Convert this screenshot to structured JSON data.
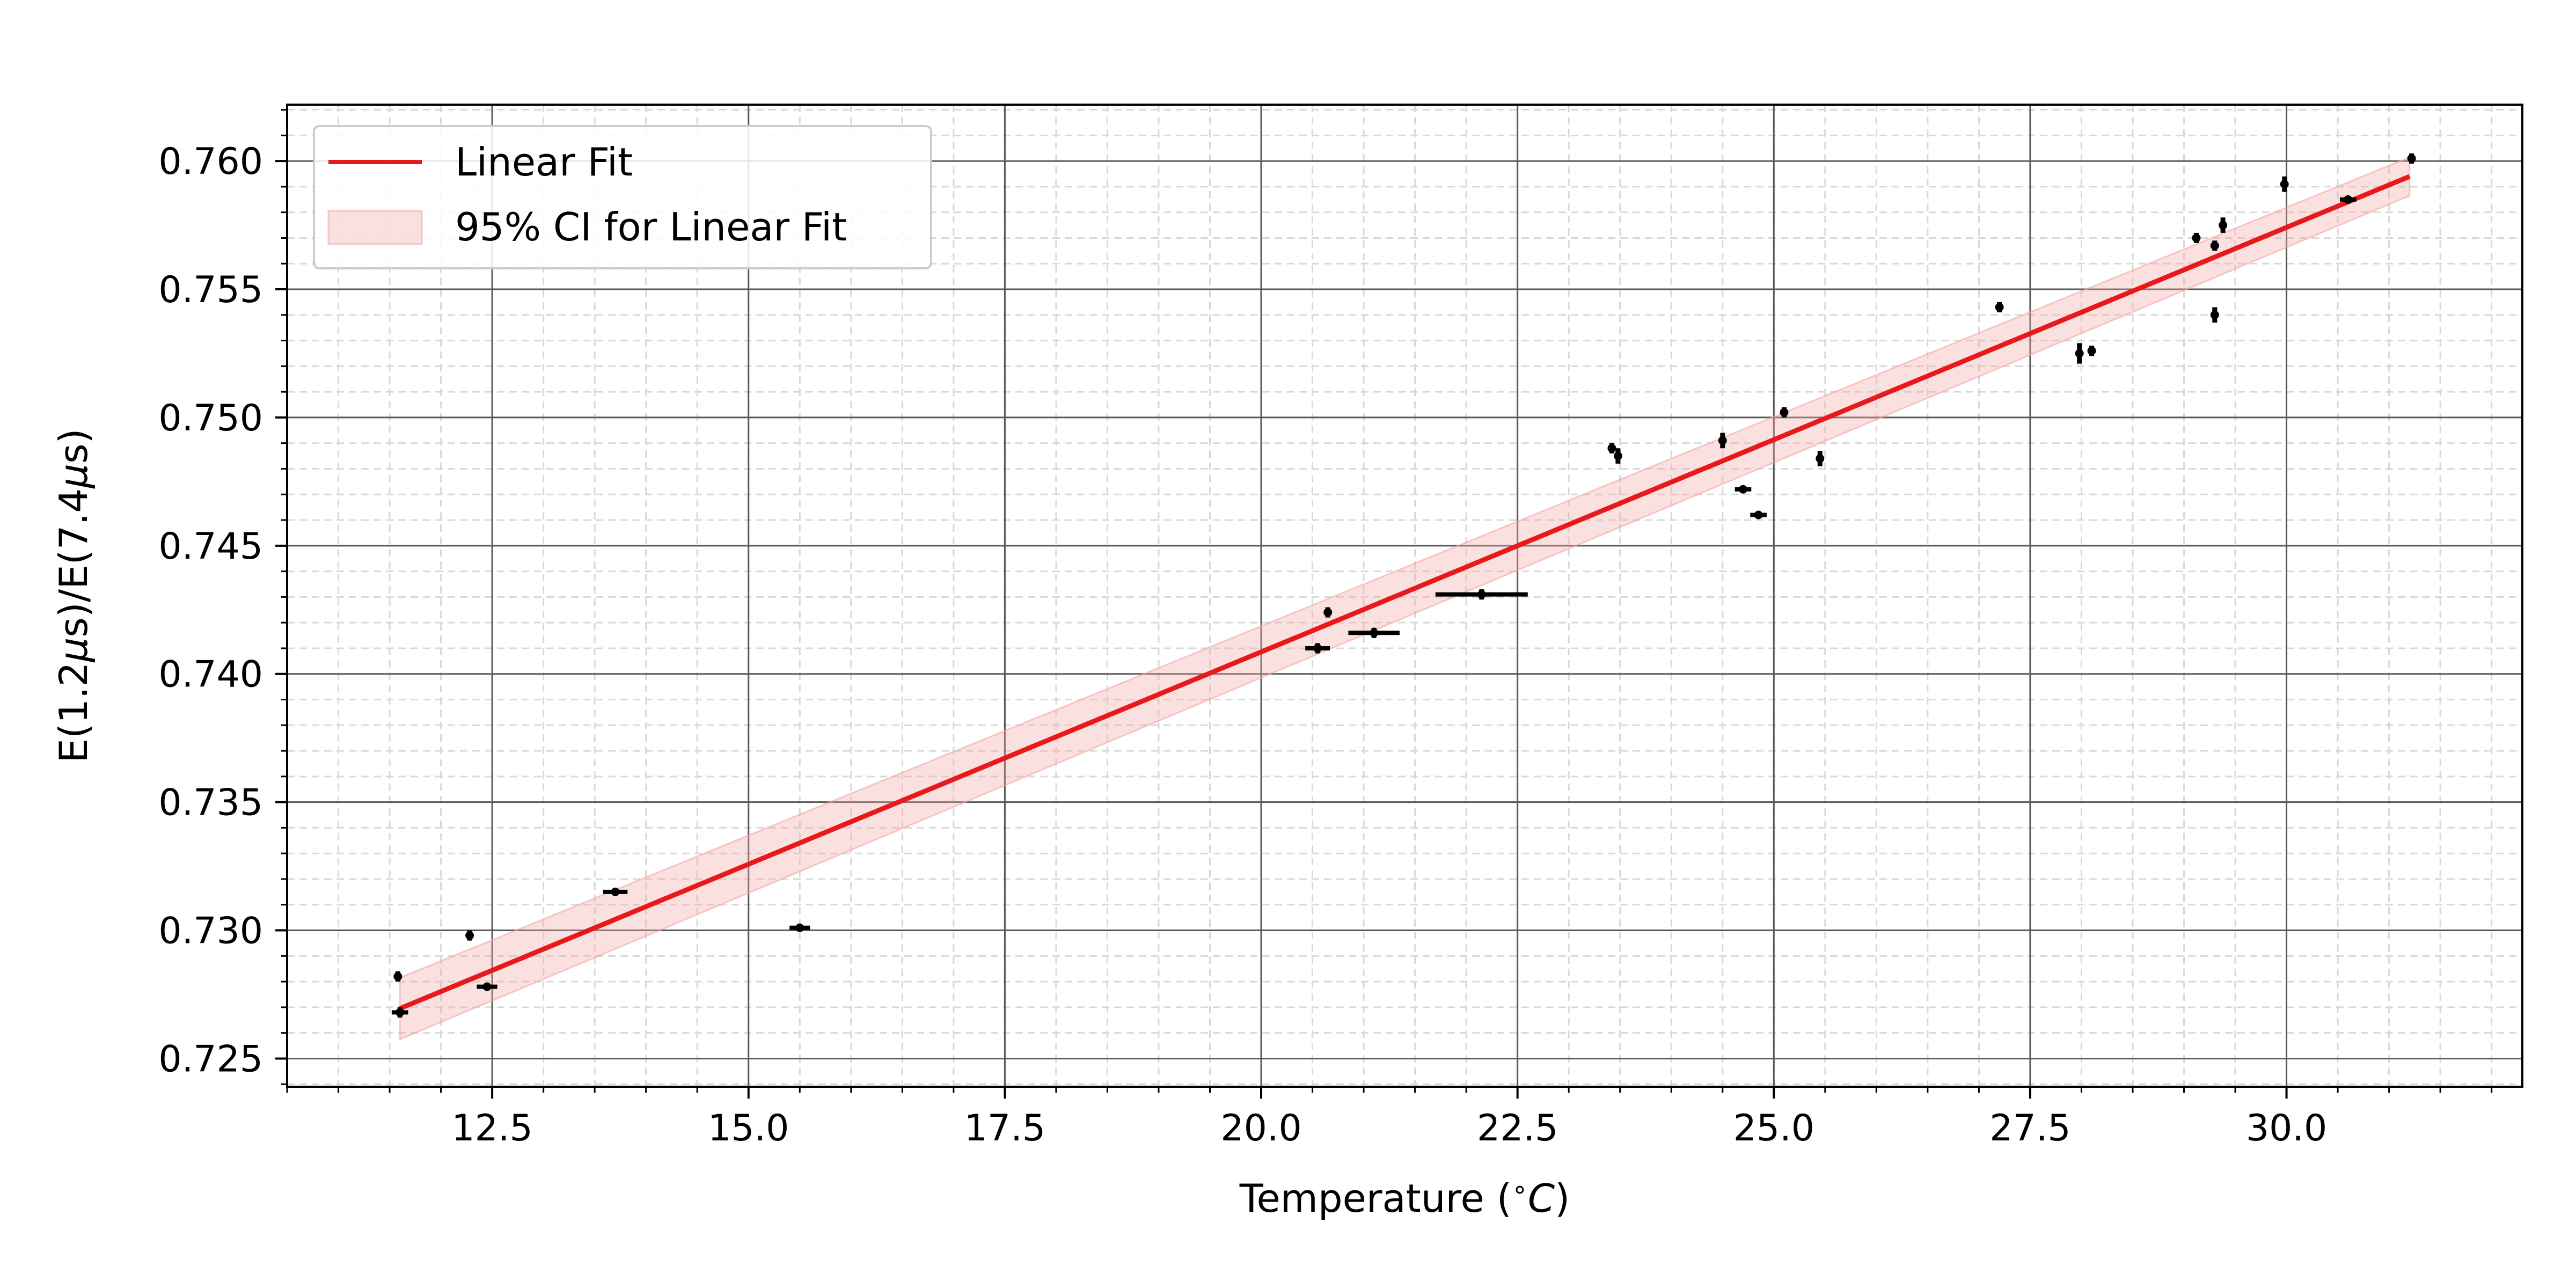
{
  "chart_data": {
    "type": "scatter",
    "title": "",
    "xlabel": "Temperature ($^\\circ C$)",
    "xlabel_parts": {
      "before": "Temperature (",
      "sup": "∘",
      "var": "C",
      "after": ")"
    },
    "ylabel": "E(1.2μs)/E(7.4μs)",
    "ylabel_parts": {
      "p1": "E(1.2",
      "mu1": "μ",
      "p2": "s)/E(7.4",
      "mu2": "μ",
      "p3": "s)"
    },
    "xlim": [
      10.5,
      32.3
    ],
    "ylim": [
      0.7239,
      0.7622
    ],
    "xticks": [
      12.5,
      15.0,
      17.5,
      20.0,
      22.5,
      25.0,
      27.5,
      30.0
    ],
    "xtick_labels": [
      "12.5",
      "15.0",
      "17.5",
      "20.0",
      "22.5",
      "25.0",
      "27.5",
      "30.0"
    ],
    "yticks": [
      0.725,
      0.73,
      0.735,
      0.74,
      0.745,
      0.75,
      0.755,
      0.76
    ],
    "ytick_labels": [
      "0.725",
      "0.730",
      "0.735",
      "0.740",
      "0.745",
      "0.750",
      "0.755",
      "0.760"
    ],
    "grid": true,
    "minor_grid": true,
    "legend_position": "upper-left",
    "fit": {
      "name": "Linear Fit",
      "color": "#e8191a",
      "x": [
        11.6,
        31.2
      ],
      "y": [
        0.72695,
        0.7594
      ],
      "ci_name": "95% CI for Linear Fit",
      "ci_color": "#f4a6a6",
      "ci_lower": [
        0.72575,
        0.75865
      ],
      "ci_upper": [
        0.72815,
        0.76015
      ]
    },
    "points": [
      {
        "x": 11.58,
        "y": 0.7282,
        "xerr": 0.0,
        "yerr": 0.0002
      },
      {
        "x": 11.6,
        "y": 0.7268,
        "xerr": 0.08,
        "yerr": 0.0002
      },
      {
        "x": 12.28,
        "y": 0.7298,
        "xerr": 0.0,
        "yerr": 0.0002
      },
      {
        "x": 12.45,
        "y": 0.7278,
        "xerr": 0.1,
        "yerr": 0.0001
      },
      {
        "x": 13.7,
        "y": 0.7315,
        "xerr": 0.12,
        "yerr": 0.0001
      },
      {
        "x": 15.5,
        "y": 0.7301,
        "xerr": 0.1,
        "yerr": 0.0001
      },
      {
        "x": 20.55,
        "y": 0.741,
        "xerr": 0.12,
        "yerr": 0.0002
      },
      {
        "x": 20.65,
        "y": 0.7424,
        "xerr": 0.0,
        "yerr": 0.0002
      },
      {
        "x": 21.1,
        "y": 0.7416,
        "xerr": 0.25,
        "yerr": 0.0002
      },
      {
        "x": 22.15,
        "y": 0.7431,
        "xerr": 0.45,
        "yerr": 0.0002
      },
      {
        "x": 23.42,
        "y": 0.7488,
        "xerr": 0.0,
        "yerr": 0.0002
      },
      {
        "x": 23.48,
        "y": 0.7485,
        "xerr": 0.0,
        "yerr": 0.0003
      },
      {
        "x": 24.5,
        "y": 0.7491,
        "xerr": 0.0,
        "yerr": 0.0003
      },
      {
        "x": 24.7,
        "y": 0.7472,
        "xerr": 0.08,
        "yerr": 0.0001
      },
      {
        "x": 24.85,
        "y": 0.7462,
        "xerr": 0.08,
        "yerr": 0.0001
      },
      {
        "x": 25.1,
        "y": 0.7502,
        "xerr": 0.0,
        "yerr": 0.0002
      },
      {
        "x": 25.45,
        "y": 0.7484,
        "xerr": 0.0,
        "yerr": 0.0003
      },
      {
        "x": 27.2,
        "y": 0.7543,
        "xerr": 0.0,
        "yerr": 0.0002
      },
      {
        "x": 27.98,
        "y": 0.7525,
        "xerr": 0.0,
        "yerr": 0.0004
      },
      {
        "x": 28.1,
        "y": 0.7526,
        "xerr": 0.0,
        "yerr": 0.0002
      },
      {
        "x": 29.12,
        "y": 0.757,
        "xerr": 0.0,
        "yerr": 0.0002
      },
      {
        "x": 29.3,
        "y": 0.7567,
        "xerr": 0.0,
        "yerr": 0.0002
      },
      {
        "x": 29.3,
        "y": 0.754,
        "xerr": 0.0,
        "yerr": 0.0003
      },
      {
        "x": 29.38,
        "y": 0.7575,
        "xerr": 0.0,
        "yerr": 0.0003
      },
      {
        "x": 29.98,
        "y": 0.7591,
        "xerr": 0.0,
        "yerr": 0.0003
      },
      {
        "x": 30.6,
        "y": 0.7585,
        "xerr": 0.08,
        "yerr": 0.0001
      },
      {
        "x": 31.22,
        "y": 0.7601,
        "xerr": 0.0,
        "yerr": 0.0002
      }
    ]
  }
}
